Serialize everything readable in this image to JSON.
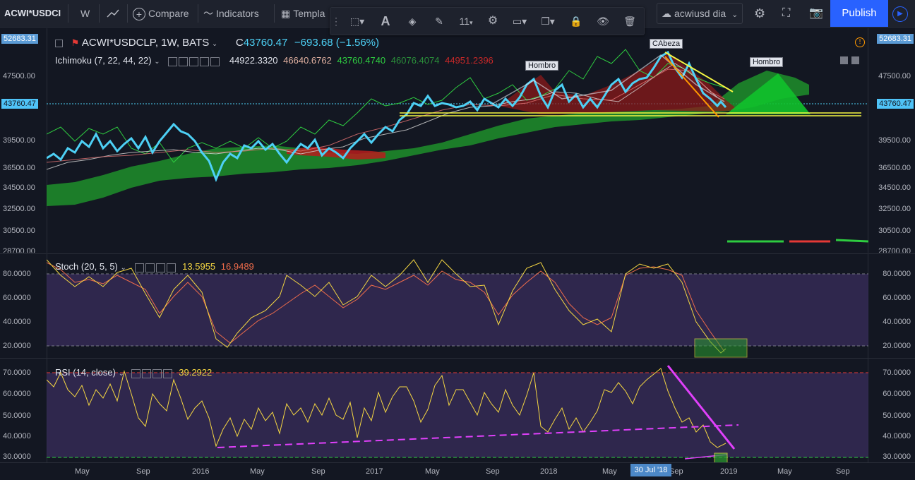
{
  "toolbar": {
    "symbol": "ACWI*USDCI",
    "interval": "W",
    "compare_label": "Compare",
    "indicators_label": "Indicators",
    "templates_label": "Templa",
    "layout_name": "acwiusd dia",
    "publish_label": "Publish"
  },
  "drawing_toolbar": {
    "line_width": "11"
  },
  "main_pane": {
    "title": "ACWI*USDCLP, 1W, BATS",
    "ohlc_prefix": "C",
    "close": "43760.47",
    "change": "−693.68 (−1.56%)",
    "ichimoku_label": "Ichimoku (7, 22, 44, 22)",
    "ichimoku_values": [
      "44922.3320",
      "46640.6762",
      "43760.4740",
      "46076.4074",
      "44951.2396"
    ],
    "current_price": "43760.47",
    "top_price": "52683.31",
    "y_ticks": [
      "47500.00",
      "39500.00",
      "36500.00",
      "34500.00",
      "32500.00",
      "30500.00",
      "28700.00"
    ],
    "annotations": {
      "head": "CAbeza",
      "shoulder_left": "Hombro",
      "shoulder_right": "Hombro"
    }
  },
  "stoch_pane": {
    "label": "Stoch (20, 5, 5)",
    "k": "13.5955",
    "d": "16.9489",
    "y_ticks": [
      "80.0000",
      "60.0000",
      "40.0000",
      "20.0000"
    ]
  },
  "rsi_pane": {
    "label": "RSI (14, close)",
    "value": "39.2922",
    "y_ticks": [
      "70.0000",
      "60.0000",
      "50.0000",
      "40.0000",
      "30.0000"
    ]
  },
  "x_axis": {
    "ticks": [
      "May",
      "Sep",
      "2016",
      "May",
      "Sep",
      "2017",
      "May",
      "Sep",
      "2018",
      "May",
      "Sep",
      "2019",
      "May",
      "Sep"
    ],
    "highlight": "30 Jul '18"
  },
  "colors": {
    "price": "#4dd0f5",
    "ichimoku_green": "#1e8f2a",
    "ichimoku_red": "#b71c1c",
    "stoch_k": "#f5d742",
    "stoch_d": "#ef6c4b",
    "rsi": "#f5d742",
    "rsi_band": "#3a2d5c",
    "accent": "#2962ff"
  }
}
